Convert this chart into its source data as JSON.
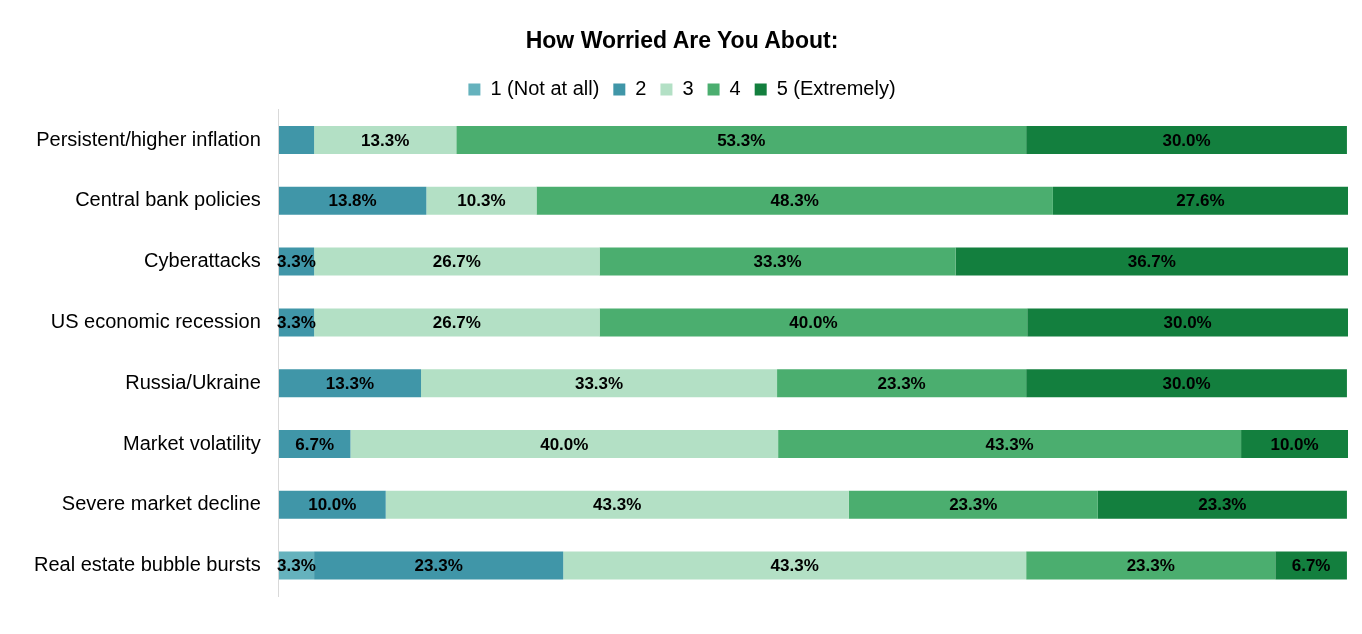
{
  "chart_data": {
    "type": "bar",
    "orientation": "horizontal",
    "stacked": true,
    "title": "How Worried Are You About:",
    "legend": "top",
    "grid": false,
    "tick_labels": "y",
    "categories": [
      "Persistent/higher inflation",
      "Central bank policies",
      "Cyberattacks",
      "US economic recession",
      "Russia/Ukraine",
      "Market volatility",
      "Severe market decline",
      "Real estate bubble bursts"
    ],
    "series": [
      {
        "name": "1 (Not at all)",
        "color": "#65b2bd",
        "values": [
          null,
          null,
          null,
          null,
          null,
          null,
          null,
          3.3
        ],
        "value_labels": [
          null,
          null,
          null,
          null,
          null,
          null,
          null,
          "3.3%"
        ]
      },
      {
        "name": "2",
        "color": "#4096a8",
        "values": [
          3.3,
          13.8,
          3.3,
          3.3,
          13.3,
          6.7,
          10.0,
          23.3
        ],
        "value_labels": [
          null,
          "13.8%",
          "3.3%",
          "3.3%",
          "13.3%",
          "6.7%",
          "10.0%",
          "23.3%"
        ]
      },
      {
        "name": "3",
        "color": "#b3e0c5",
        "values": [
          13.3,
          10.3,
          26.7,
          26.7,
          33.3,
          40.0,
          43.3,
          43.3
        ],
        "value_labels": [
          "13.3%",
          "10.3%",
          "26.7%",
          "26.7%",
          "33.3%",
          "40.0%",
          "43.3%",
          "43.3%"
        ]
      },
      {
        "name": "4",
        "color": "#4bae6f",
        "values": [
          53.3,
          48.3,
          33.3,
          40.0,
          23.3,
          43.3,
          23.3,
          23.3
        ],
        "value_labels": [
          "53.3%",
          "48.3%",
          "33.3%",
          "40.0%",
          "23.3%",
          "43.3%",
          "23.3%",
          "23.3%"
        ]
      },
      {
        "name": "5 (Extremely)",
        "color": "#137f3e",
        "values": [
          30.0,
          27.6,
          36.7,
          30.0,
          30.0,
          10.0,
          23.3,
          6.7
        ],
        "value_labels": [
          "30.0%",
          "27.6%",
          "36.7%",
          "30.0%",
          "30.0%",
          "10.0%",
          "23.3%",
          "6.7%"
        ]
      }
    ]
  }
}
